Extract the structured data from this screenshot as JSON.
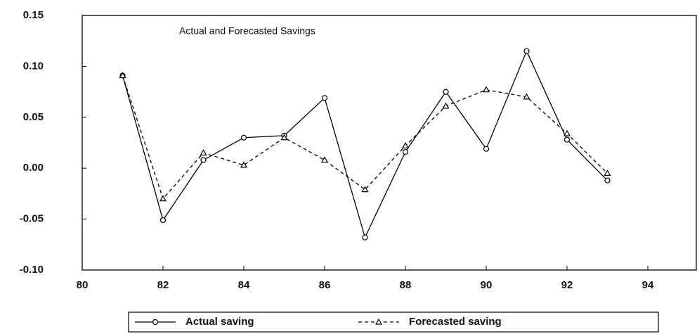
{
  "chart_data": {
    "type": "line",
    "title": "Actual and Forecasted Savings",
    "x": [
      81,
      82,
      83,
      84,
      85,
      86,
      87,
      88,
      89,
      90,
      91,
      92,
      93
    ],
    "series": [
      {
        "name": "Actual saving",
        "color": "#000000",
        "marker": "circle",
        "dash": false,
        "values": [
          0.091,
          -0.051,
          0.008,
          0.03,
          0.032,
          0.069,
          -0.068,
          0.016,
          0.075,
          0.019,
          0.115,
          0.028,
          -0.012
        ]
      },
      {
        "name": "Forecasted saving",
        "color": "#000000",
        "marker": "triangle",
        "dash": true,
        "values": [
          0.091,
          -0.03,
          0.015,
          0.003,
          0.03,
          0.008,
          -0.021,
          0.022,
          0.061,
          0.077,
          0.07,
          0.034,
          -0.005
        ]
      }
    ],
    "xlim": [
      80,
      95.2
    ],
    "xticks": [
      80,
      82,
      84,
      86,
      88,
      90,
      92,
      94
    ],
    "ylim": [
      -0.1,
      0.15
    ],
    "yticks": [
      {
        "value": -0.1,
        "label": "-0.10"
      },
      {
        "value": -0.05,
        "label": "-0.05"
      },
      {
        "value": 0,
        "label": "0.00"
      },
      {
        "value": 0.05,
        "label": "0.05"
      },
      {
        "value": 0.1,
        "label": "0.10"
      },
      {
        "value": 0.15,
        "label": "0.15"
      }
    ],
    "grid": false,
    "legend": "bottom"
  }
}
